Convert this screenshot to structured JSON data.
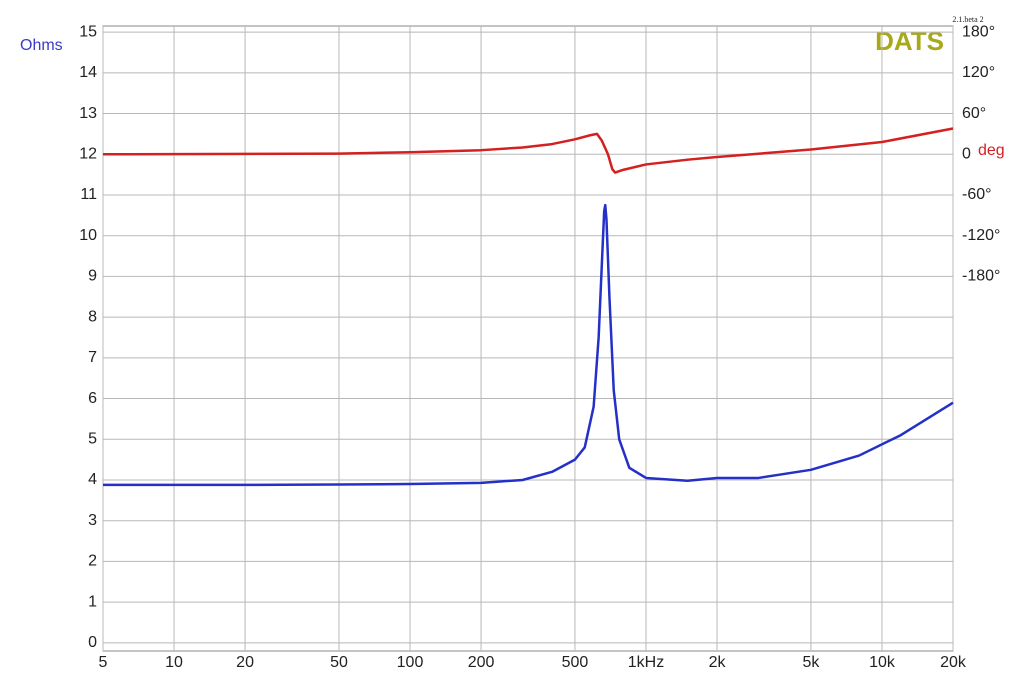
{
  "chart_data": {
    "type": "line",
    "log_x": true,
    "grid": true,
    "y_label": "Ohms",
    "y2_label": "deg",
    "brand": "DATS",
    "version": "2.1.beta 2",
    "xlim": [
      5,
      20000
    ],
    "xticks": [
      5,
      10,
      20,
      50,
      100,
      200,
      500,
      {
        "value": 1000,
        "label": "1kHz"
      },
      {
        "value": 2000,
        "label": "2k"
      },
      {
        "value": 5000,
        "label": "5k"
      },
      {
        "value": 10000,
        "label": "10k"
      },
      {
        "value": 20000,
        "label": "20k"
      }
    ],
    "ylim": [
      -0.2,
      15.15
    ],
    "yticks": [
      0,
      1,
      2,
      3,
      4,
      5,
      6,
      7,
      8,
      9,
      10,
      11,
      12,
      13,
      14,
      15
    ],
    "y2lim": [
      -732,
      189
    ],
    "y2ticks": [
      {
        "value": 180,
        "label": "180°"
      },
      {
        "value": 120,
        "label": "120°"
      },
      {
        "value": 60,
        "label": "60°"
      },
      0,
      {
        "value": -60,
        "label": "-60°"
      },
      {
        "value": -120,
        "label": "-120°"
      },
      {
        "value": -180,
        "label": "-180°"
      }
    ],
    "series": [
      {
        "color": "#2430c8",
        "x": [
          5,
          10,
          20,
          50,
          100,
          200,
          300,
          400,
          500,
          550,
          600,
          630,
          650,
          665,
          672,
          680,
          700,
          730,
          770,
          850,
          1000,
          1500,
          2000,
          3000,
          5000,
          8000,
          12000,
          20000
        ],
        "values": [
          3.88,
          3.88,
          3.88,
          3.89,
          3.9,
          3.93,
          4.0,
          4.2,
          4.5,
          4.8,
          5.8,
          7.5,
          9.3,
          10.6,
          10.75,
          10.4,
          8.5,
          6.2,
          5.0,
          4.3,
          4.05,
          3.98,
          4.05,
          4.05,
          4.25,
          4.6,
          5.1,
          5.9
        ]
      },
      {
        "color": "#d42020",
        "axis": "y2",
        "x": [
          5,
          50,
          100,
          200,
          300,
          400,
          500,
          580,
          620,
          650,
          690,
          720,
          740,
          800,
          1000,
          1500,
          2000,
          5000,
          10000,
          20000
        ],
        "values": [
          0,
          1,
          3,
          6,
          10,
          15,
          22,
          28,
          30,
          20,
          0,
          -22,
          -27,
          -23,
          -15,
          -8,
          -4,
          7,
          18,
          38
        ]
      }
    ]
  }
}
